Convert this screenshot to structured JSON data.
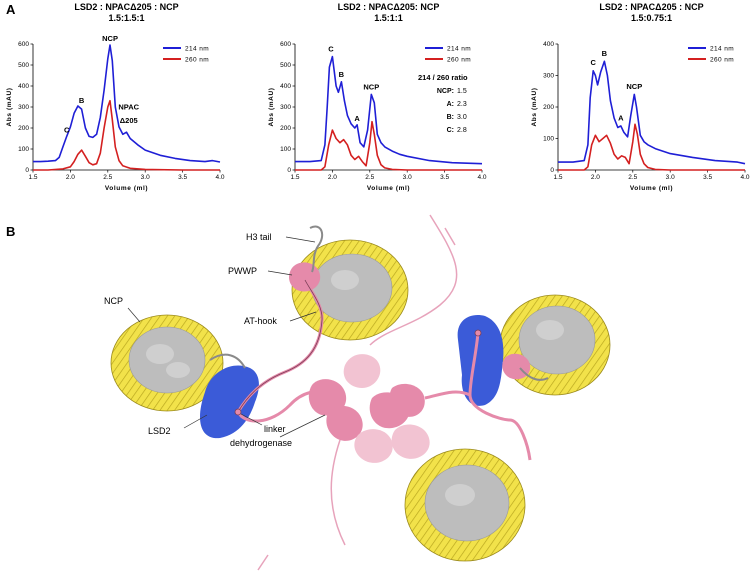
{
  "panel_a": {
    "letter": "A"
  },
  "panel_b": {
    "letter": "B"
  },
  "colors": {
    "s214": "#1f1fd6",
    "s260": "#d42020",
    "nucleosome_ribbon": "#f2e24a",
    "nucleosome_core": "#bdbdbd",
    "lsd2": "#3b5bd8",
    "dehydrogenase": "#e58aaa",
    "dehydrogenase_light": "#f2c3d2"
  },
  "chart_data": [
    {
      "type": "line",
      "title": "LSD2 : NPACΔ205 : NCP",
      "subtitle": "1.5:1.5:1",
      "xlabel": "Volume (ml)",
      "ylabel": "Abs (mAU)",
      "xlim": [
        1.5,
        4.0
      ],
      "ylim": [
        0,
        600
      ],
      "xticks": [
        "1.5",
        "2.0",
        "2.5",
        "3.0",
        "3.5",
        "4.0"
      ],
      "yticks": [
        "0",
        "100",
        "200",
        "300",
        "400",
        "500",
        "600"
      ],
      "legend": "top-right",
      "series": [
        {
          "name": "214 nm",
          "color": "#1f1fd6",
          "x": [
            1.5,
            1.6,
            1.7,
            1.8,
            1.85,
            1.9,
            1.95,
            2.0,
            2.05,
            2.1,
            2.15,
            2.2,
            2.25,
            2.3,
            2.35,
            2.4,
            2.45,
            2.5,
            2.53,
            2.56,
            2.6,
            2.65,
            2.7,
            2.75,
            2.8,
            2.9,
            3.0,
            3.2,
            3.4,
            3.6,
            3.8,
            3.9,
            4.0
          ],
          "y": [
            40,
            40,
            42,
            45,
            60,
            110,
            160,
            205,
            270,
            305,
            290,
            200,
            160,
            155,
            170,
            250,
            380,
            530,
            595,
            520,
            300,
            205,
            170,
            180,
            150,
            120,
            95,
            70,
            55,
            45,
            40,
            45,
            38
          ]
        },
        {
          "name": "260 nm",
          "color": "#d42020",
          "x": [
            1.5,
            1.7,
            1.9,
            2.0,
            2.05,
            2.1,
            2.15,
            2.2,
            2.25,
            2.3,
            2.35,
            2.4,
            2.45,
            2.5,
            2.53,
            2.56,
            2.6,
            2.65,
            2.7,
            2.8,
            3.0,
            3.5,
            4.0
          ],
          "y": [
            0,
            0,
            5,
            15,
            40,
            75,
            95,
            65,
            35,
            25,
            30,
            80,
            200,
            300,
            330,
            240,
            110,
            45,
            20,
            8,
            3,
            0,
            0
          ]
        }
      ],
      "annotations": [
        {
          "text": "C",
          "x": 1.95,
          "y": 160
        },
        {
          "text": "B",
          "x": 2.15,
          "y": 300
        },
        {
          "text": "NCP",
          "x": 2.53,
          "y": 595
        },
        {
          "text": "NPAC",
          "x": 2.78,
          "y": 270
        },
        {
          "text": "Δ205",
          "x": 2.78,
          "y": 205
        }
      ]
    },
    {
      "type": "line",
      "title": "LSD2 : NPACΔ205: NCP",
      "subtitle": "1.5:1:1",
      "xlabel": "Volume (ml)",
      "ylabel": "Abs (mAU)",
      "xlim": [
        1.5,
        4.0
      ],
      "ylim": [
        0,
        600
      ],
      "xticks": [
        "1.5",
        "2.0",
        "2.5",
        "3.0",
        "3.5",
        "4.0"
      ],
      "yticks": [
        "0",
        "100",
        "200",
        "300",
        "400",
        "500",
        "600"
      ],
      "legend": "top-right",
      "series": [
        {
          "name": "214 nm",
          "color": "#1f1fd6",
          "x": [
            1.5,
            1.7,
            1.85,
            1.9,
            1.93,
            1.96,
            2.0,
            2.05,
            2.08,
            2.12,
            2.16,
            2.2,
            2.25,
            2.3,
            2.33,
            2.37,
            2.42,
            2.47,
            2.52,
            2.56,
            2.6,
            2.65,
            2.7,
            2.8,
            2.9,
            3.0,
            3.3,
            3.6,
            4.0
          ],
          "y": [
            40,
            40,
            45,
            120,
            300,
            490,
            540,
            400,
            370,
            420,
            330,
            260,
            220,
            200,
            215,
            130,
            110,
            190,
            360,
            320,
            170,
            130,
            110,
            90,
            75,
            65,
            45,
            35,
            30
          ]
        },
        {
          "name": "260 nm",
          "color": "#d42020",
          "x": [
            1.5,
            1.85,
            1.9,
            1.95,
            2.0,
            2.05,
            2.1,
            2.15,
            2.2,
            2.25,
            2.3,
            2.35,
            2.4,
            2.45,
            2.5,
            2.53,
            2.56,
            2.6,
            2.65,
            2.7,
            2.8,
            3.0,
            4.0
          ],
          "y": [
            0,
            0,
            15,
            120,
            190,
            150,
            130,
            145,
            120,
            70,
            50,
            65,
            40,
            20,
            130,
            230,
            170,
            70,
            25,
            10,
            3,
            0,
            0
          ]
        }
      ],
      "annotations": [
        {
          "text": "C",
          "x": 1.98,
          "y": 545
        },
        {
          "text": "B",
          "x": 2.12,
          "y": 425
        },
        {
          "text": "A",
          "x": 2.33,
          "y": 215
        },
        {
          "text": "NCP",
          "x": 2.52,
          "y": 365
        }
      ],
      "ratio_box": {
        "title": "214 / 260 ratio",
        "rows": [
          {
            "label": "NCP:",
            "value": "1.5"
          },
          {
            "label": "A:",
            "value": "2.3"
          },
          {
            "label": "B:",
            "value": "3.0"
          },
          {
            "label": "C:",
            "value": "2.8"
          }
        ]
      }
    },
    {
      "type": "line",
      "title": "LSD2 : NPACΔ205 : NCP",
      "subtitle": "1.5:0.75:1",
      "xlabel": "Volume (ml)",
      "ylabel": "Abs (mAU)",
      "xlim": [
        1.5,
        4.0
      ],
      "ylim": [
        0,
        400
      ],
      "xticks": [
        "1.5",
        "2.0",
        "2.5",
        "3.0",
        "3.5",
        "4.0"
      ],
      "yticks": [
        "0",
        "100",
        "200",
        "300",
        "400"
      ],
      "legend": "top-right",
      "series": [
        {
          "name": "214 nm",
          "color": "#1f1fd6",
          "x": [
            1.5,
            1.7,
            1.85,
            1.9,
            1.93,
            1.97,
            2.0,
            2.03,
            2.07,
            2.12,
            2.16,
            2.2,
            2.25,
            2.3,
            2.34,
            2.38,
            2.43,
            2.47,
            2.52,
            2.55,
            2.6,
            2.65,
            2.7,
            2.8,
            2.9,
            3.0,
            3.3,
            3.6,
            3.9,
            4.0
          ],
          "y": [
            25,
            25,
            30,
            80,
            230,
            315,
            300,
            270,
            310,
            345,
            300,
            220,
            165,
            135,
            140,
            120,
            105,
            170,
            240,
            200,
            110,
            90,
            80,
            68,
            60,
            52,
            40,
            30,
            25,
            20
          ]
        },
        {
          "name": "260 nm",
          "color": "#d42020",
          "x": [
            1.5,
            1.85,
            1.9,
            1.95,
            2.0,
            2.05,
            2.1,
            2.15,
            2.2,
            2.25,
            2.3,
            2.35,
            2.4,
            2.45,
            2.5,
            2.53,
            2.56,
            2.6,
            2.65,
            2.7,
            2.8,
            3.0,
            4.0
          ],
          "y": [
            0,
            0,
            10,
            80,
            110,
            90,
            100,
            110,
            85,
            50,
            35,
            45,
            40,
            20,
            90,
            145,
            115,
            50,
            20,
            8,
            2,
            0,
            0
          ]
        }
      ],
      "annotations": [
        {
          "text": "C",
          "x": 1.97,
          "y": 320
        },
        {
          "text": "B",
          "x": 2.12,
          "y": 350
        },
        {
          "text": "A",
          "x": 2.34,
          "y": 145
        },
        {
          "text": "NCP",
          "x": 2.52,
          "y": 245
        }
      ]
    }
  ],
  "callouts": {
    "h3_tail": "H3 tail",
    "pwwp": "PWWP",
    "at_hook": "AT-hook",
    "ncp": "NCP",
    "linker": "linker",
    "lsd2": "LSD2",
    "dehydrogenase": "dehydrogenase"
  }
}
